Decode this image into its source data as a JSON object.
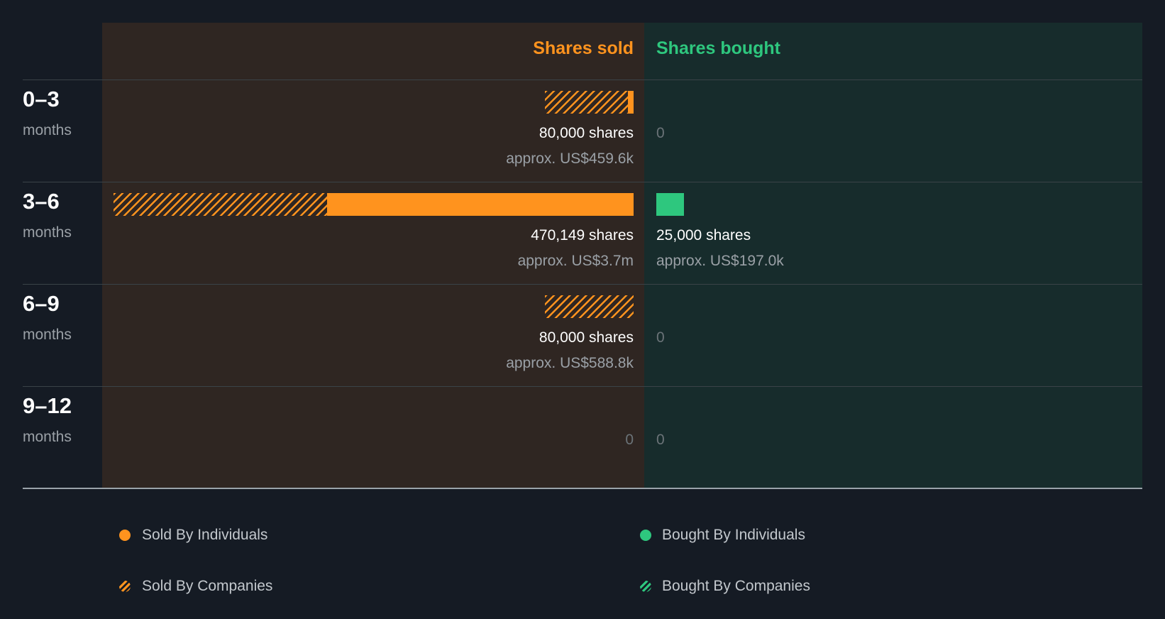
{
  "colors": {
    "sold": "#ff931e",
    "bought": "#2ec77e",
    "background": "#151b24"
  },
  "chart_data": {
    "type": "bar",
    "orientation": "horizontal-diverging",
    "headers": {
      "sold": "Shares sold",
      "bought": "Shares bought"
    },
    "periods": [
      {
        "label": "0–3",
        "unit": "months",
        "sold": {
          "individuals": 5000,
          "companies": 75000,
          "shares_label": "80,000 shares",
          "value_label": "approx. US$459.6k"
        },
        "bought": {
          "individuals": 0,
          "companies": 0,
          "zero_label": "0"
        }
      },
      {
        "label": "3–6",
        "unit": "months",
        "sold": {
          "individuals": 277149,
          "companies": 193000,
          "shares_label": "470,149 shares",
          "value_label": "approx. US$3.7m"
        },
        "bought": {
          "individuals": 25000,
          "companies": 0,
          "shares_label": "25,000 shares",
          "value_label": "approx. US$197.0k"
        }
      },
      {
        "label": "6–9",
        "unit": "months",
        "sold": {
          "individuals": 0,
          "companies": 80000,
          "shares_label": "80,000 shares",
          "value_label": "approx. US$588.8k"
        },
        "bought": {
          "individuals": 0,
          "companies": 0,
          "zero_label": "0"
        }
      },
      {
        "label": "9–12",
        "unit": "months",
        "sold": {
          "individuals": 0,
          "companies": 0,
          "zero_label": "0"
        },
        "bought": {
          "individuals": 0,
          "companies": 0,
          "zero_label": "0"
        }
      }
    ],
    "max_shares": 470149,
    "legend": [
      {
        "label": "Sold By Individuals",
        "style": "solid",
        "side": "sold"
      },
      {
        "label": "Bought By Individuals",
        "style": "solid",
        "side": "bought"
      },
      {
        "label": "Sold By Companies",
        "style": "hatched",
        "side": "sold"
      },
      {
        "label": "Bought By Companies",
        "style": "hatched",
        "side": "bought"
      }
    ]
  }
}
